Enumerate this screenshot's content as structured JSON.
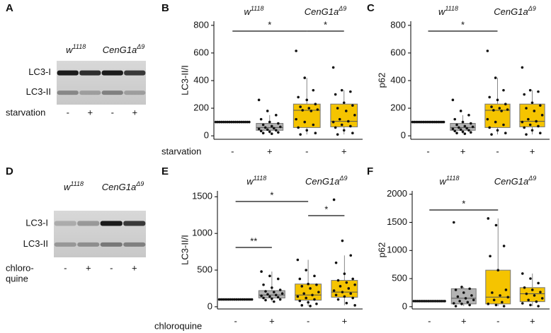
{
  "blots": [
    {
      "label": "A",
      "genotypes": [
        {
          "base": "w",
          "sup": "1118"
        },
        {
          "base": "CenG1a",
          "sup": "Δ9"
        }
      ],
      "bands": [
        "LC3-I",
        "LC3-II"
      ],
      "treatment": [
        "starvation"
      ],
      "lanes": [
        "-",
        "+",
        "-",
        "+"
      ]
    },
    {
      "label": "D",
      "genotypes": [
        {
          "base": "w",
          "sup": "1118"
        },
        {
          "base": "CenG1a",
          "sup": "Δ9"
        }
      ],
      "bands": [
        "LC3-I",
        "LC3-II"
      ],
      "treatment": [
        "chloro-",
        "quine"
      ],
      "lanes": [
        "-",
        "+",
        "-",
        "+"
      ]
    }
  ],
  "chart_data": [
    {
      "type": "box",
      "label": "B",
      "headers": [
        {
          "base": "w",
          "sup": "1118"
        },
        {
          "base": "CenG1a",
          "sup": "Δ9"
        }
      ],
      "ylabel": "LC3-II/I",
      "xlabel": "starvation",
      "categories": [
        "-",
        "+",
        "-",
        "+"
      ],
      "colors": [
        "#b3b3b3",
        "#b3b3b3",
        "#f5c400",
        "#f5c400"
      ],
      "ylim": [
        -25,
        830
      ],
      "yticks": [
        0,
        200,
        400,
        600,
        800
      ],
      "groups": [
        {
          "points": [
            100,
            100,
            100,
            100,
            100,
            100,
            100,
            100,
            100,
            100,
            100,
            100,
            100,
            100,
            100,
            100,
            100,
            100
          ]
        },
        {
          "min": 15,
          "q1": 40,
          "median": 60,
          "q3": 90,
          "max": 150,
          "points": [
            260,
            180,
            150,
            120,
            100,
            90,
            80,
            70,
            65,
            60,
            55,
            50,
            45,
            40,
            35,
            30,
            25,
            20,
            15
          ]
        },
        {
          "min": 10,
          "q1": 60,
          "median": 185,
          "q3": 230,
          "max": 420,
          "points": [
            615,
            420,
            330,
            280,
            260,
            230,
            210,
            200,
            190,
            185,
            180,
            120,
            100,
            80,
            60,
            40,
            20,
            10
          ]
        },
        {
          "min": 10,
          "q1": 65,
          "median": 105,
          "q3": 230,
          "max": 330,
          "points": [
            495,
            330,
            320,
            300,
            240,
            220,
            200,
            180,
            150,
            120,
            105,
            100,
            80,
            70,
            60,
            40,
            20,
            10
          ]
        }
      ],
      "significance": [
        {
          "from": 0,
          "to": 2,
          "label": "*"
        },
        {
          "from": 2,
          "to": 3,
          "label": "*"
        }
      ]
    },
    {
      "type": "box",
      "label": "C",
      "headers": [
        {
          "base": "w",
          "sup": "1118"
        },
        {
          "base": "CenG1a",
          "sup": "Δ9"
        }
      ],
      "ylabel": "p62",
      "categories": [
        "-",
        "+",
        "-",
        "+"
      ],
      "colors": [
        "#b3b3b3",
        "#b3b3b3",
        "#f5c400",
        "#f5c400"
      ],
      "ylim": [
        -25,
        830
      ],
      "yticks": [
        0,
        200,
        400,
        600,
        800
      ],
      "groups": [
        {
          "points": [
            100,
            100,
            100,
            100,
            100,
            100,
            100,
            100,
            100,
            100,
            100,
            100,
            100,
            100,
            100,
            100,
            100,
            100
          ]
        },
        {
          "min": 15,
          "q1": 40,
          "median": 60,
          "q3": 90,
          "max": 150,
          "points": [
            260,
            180,
            150,
            120,
            100,
            90,
            80,
            70,
            65,
            60,
            55,
            50,
            45,
            40,
            35,
            30,
            25,
            20,
            15
          ]
        },
        {
          "min": 10,
          "q1": 60,
          "median": 185,
          "q3": 230,
          "max": 420,
          "points": [
            615,
            420,
            330,
            280,
            260,
            230,
            210,
            200,
            190,
            185,
            180,
            120,
            100,
            80,
            60,
            40,
            20,
            10
          ]
        },
        {
          "min": 10,
          "q1": 65,
          "median": 105,
          "q3": 230,
          "max": 330,
          "points": [
            495,
            330,
            320,
            300,
            240,
            220,
            200,
            180,
            150,
            120,
            105,
            100,
            80,
            70,
            60,
            40,
            20,
            10
          ]
        }
      ],
      "significance": [
        {
          "from": 0,
          "to": 2,
          "label": "*"
        }
      ]
    },
    {
      "type": "box",
      "label": "E",
      "headers": [
        {
          "base": "w",
          "sup": "1118"
        },
        {
          "base": "CenG1a",
          "sup": "Δ9"
        }
      ],
      "ylabel": "LC3-II/I",
      "xlabel": "chloroquine",
      "categories": [
        "-",
        "+",
        "-",
        "+"
      ],
      "colors": [
        "#b3b3b3",
        "#b3b3b3",
        "#f5c400",
        "#f5c400"
      ],
      "ylim": [
        -30,
        1580
      ],
      "yticks": [
        0,
        500,
        1000,
        1500
      ],
      "groups": [
        {
          "points": [
            100,
            100,
            100,
            100,
            100,
            100,
            100,
            100,
            100,
            100,
            100,
            100,
            100,
            100,
            100,
            100,
            100,
            100
          ]
        },
        {
          "min": 70,
          "q1": 120,
          "median": 160,
          "q3": 220,
          "max": 480,
          "points": [
            480,
            420,
            380,
            300,
            260,
            230,
            210,
            200,
            180,
            170,
            160,
            150,
            140,
            130,
            120,
            110,
            100,
            90,
            70
          ]
        },
        {
          "min": 10,
          "q1": 90,
          "median": 160,
          "q3": 310,
          "max": 640,
          "points": [
            640,
            500,
            420,
            380,
            310,
            300,
            280,
            250,
            200,
            180,
            160,
            140,
            120,
            100,
            80,
            60,
            40,
            20,
            10
          ]
        },
        {
          "min": 20,
          "q1": 130,
          "median": 200,
          "q3": 360,
          "max": 700,
          "points": [
            1460,
            900,
            700,
            600,
            450,
            380,
            360,
            330,
            300,
            280,
            250,
            220,
            200,
            180,
            160,
            140,
            120,
            100,
            50,
            20
          ]
        }
      ],
      "significance": [
        {
          "from": 0,
          "to": 1,
          "label": "**"
        },
        {
          "from": 0,
          "to": 2,
          "label": "*"
        },
        {
          "from": 2,
          "to": 3,
          "label": "*"
        }
      ]
    },
    {
      "type": "box",
      "label": "F",
      "headers": [
        {
          "base": "w",
          "sup": "1118"
        },
        {
          "base": "CenG1a",
          "sup": "Δ9"
        }
      ],
      "ylabel": "p62",
      "categories": [
        "-",
        "+",
        "-",
        "+"
      ],
      "colors": [
        "#b3b3b3",
        "#b3b3b3",
        "#f5c400",
        "#f5c400"
      ],
      "ylim": [
        -40,
        2060
      ],
      "yticks": [
        0,
        500,
        1000,
        1500,
        2000
      ],
      "groups": [
        {
          "points": [
            100,
            100,
            100,
            100,
            100,
            100,
            100,
            100,
            100,
            100,
            100,
            100,
            100,
            100,
            100,
            100,
            100,
            100
          ]
        },
        {
          "min": 10,
          "q1": 50,
          "median": 150,
          "q3": 320,
          "max": 350,
          "points": [
            1500,
            350,
            320,
            300,
            250,
            200,
            180,
            150,
            120,
            100,
            80,
            60,
            50,
            30,
            10
          ]
        },
        {
          "min": 10,
          "q1": 50,
          "median": 170,
          "q3": 650,
          "max": 1570,
          "points": [
            1570,
            1450,
            1080,
            900,
            650,
            300,
            250,
            200,
            170,
            120,
            80,
            50,
            30,
            10
          ]
        },
        {
          "min": 10,
          "q1": 90,
          "median": 230,
          "q3": 340,
          "max": 590,
          "points": [
            590,
            500,
            420,
            340,
            300,
            260,
            230,
            200,
            150,
            120,
            90,
            60,
            30,
            10
          ]
        }
      ],
      "significance": [
        {
          "from": 0,
          "to": 2,
          "label": "*"
        }
      ]
    }
  ]
}
